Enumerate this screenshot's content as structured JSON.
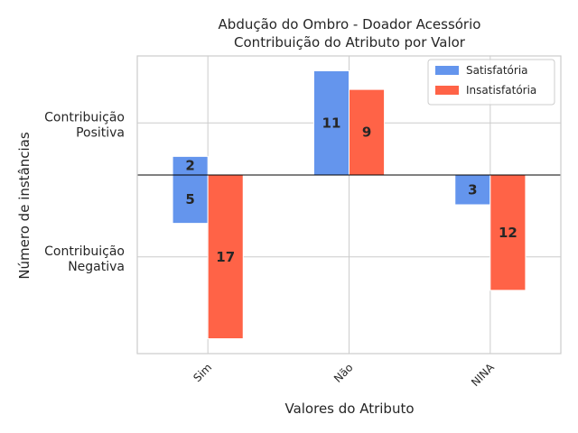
{
  "chart_data": {
    "type": "bar",
    "title_lines": [
      "Abdução do Ombro - Doador Acessório",
      "Contribuição do Atributo por Valor"
    ],
    "xlabel": "Valores do Atributo",
    "ylabel": "Número de instâncias",
    "categories": [
      "Sim",
      "Não",
      "NINA"
    ],
    "ytick_labels": [
      {
        "lines": [
          "Contribuição",
          "Positiva"
        ],
        "value": 7
      },
      {
        "lines": [
          "Contribuição",
          "Negativa"
        ],
        "value": -11
      }
    ],
    "ylim": [
      -24,
      16
    ],
    "zero_line": true,
    "grid": true,
    "legend_position": "top-right",
    "colors": {
      "Satisfatória": "#6495ED",
      "Insatisfatória": "#FF6347"
    },
    "series": [
      {
        "name": "Satisfatória",
        "color": "#6495ED",
        "segments": [
          [
            {
              "start": 0,
              "end": 2.5,
              "label": "2"
            },
            {
              "start": 0,
              "end": -6.5,
              "label": "5"
            }
          ],
          [
            {
              "start": 0,
              "end": 14,
              "label": "11"
            }
          ],
          [
            {
              "start": 0,
              "end": -4,
              "label": "3"
            }
          ]
        ]
      },
      {
        "name": "Insatisfatória",
        "color": "#FF6347",
        "segments": [
          [
            {
              "start": 0,
              "end": -22,
              "label": "17"
            }
          ],
          [
            {
              "start": 0,
              "end": 11.5,
              "label": "9"
            }
          ],
          [
            {
              "start": 0,
              "end": -15.5,
              "label": "12"
            }
          ]
        ]
      }
    ]
  }
}
